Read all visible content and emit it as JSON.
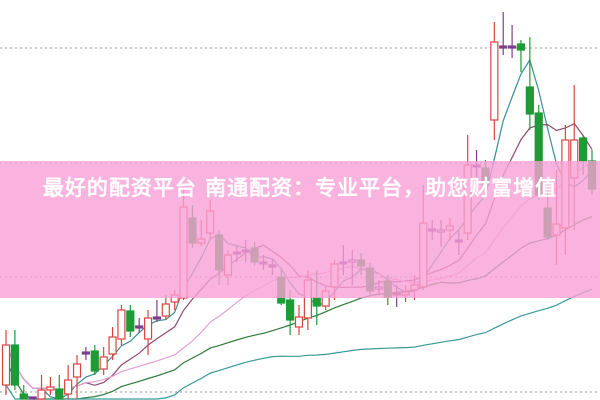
{
  "banner": {
    "title": "最好的配资平台 南通配资：专业平台，助您财富增值"
  },
  "chart_data": {
    "type": "candlestick",
    "title": "",
    "xlabel": "",
    "ylabel": "",
    "ylim": [
      0,
      40
    ],
    "grid": "dotted horizontal",
    "legend": "none",
    "colors": {
      "up": "#d9443f",
      "down": "#1f9a35",
      "doji": "#7b3f8a",
      "ma5": "#3b8d95",
      "ma10": "#8c4a70",
      "ma20": "#e3a1d6",
      "ma30": "#2e7a3a",
      "ma60": "#3a9a9a"
    },
    "moving_averages": [
      5,
      10,
      20,
      30,
      60
    ],
    "ohlc_order": [
      "open",
      "close",
      "high",
      "low"
    ],
    "candles": [
      [
        1.5,
        5.5,
        7.0,
        0.5
      ],
      [
        5.5,
        1.5,
        7.0,
        1.0
      ],
      [
        0.6,
        -0.8,
        1.5,
        -1.5
      ],
      [
        -1.2,
        -1.4,
        -0.5,
        -1.8
      ],
      [
        -0.8,
        1.0,
        2.5,
        -3.0
      ],
      [
        1.0,
        1.3,
        2.3,
        0.5
      ],
      [
        1.1,
        0.0,
        2.5,
        -0.5
      ],
      [
        0.6,
        2.0,
        3.5,
        -1.0
      ],
      [
        2.3,
        3.6,
        4.5,
        -0.8
      ],
      [
        4.8,
        4.6,
        5.3,
        4.0
      ],
      [
        4.9,
        2.9,
        5.5,
        2.5
      ],
      [
        3.1,
        4.3,
        5.3,
        2.5
      ],
      [
        4.6,
        6.3,
        7.3,
        4.0
      ],
      [
        6.1,
        9.0,
        9.5,
        5.5
      ],
      [
        8.9,
        6.9,
        9.5,
        6.3
      ],
      [
        7.4,
        7.2,
        8.2,
        6.7
      ],
      [
        6.1,
        8.2,
        9.0,
        4.5
      ],
      [
        8.3,
        8.3,
        10.0,
        7.8
      ],
      [
        8.4,
        9.6,
        10.5,
        8.0
      ],
      [
        9.8,
        10.5,
        11.0,
        9.0
      ],
      [
        10.2,
        19.3,
        21.0,
        10.0
      ],
      [
        18.2,
        15.7,
        19.5,
        15.2
      ],
      [
        15.7,
        16.1,
        18.0,
        15.4
      ],
      [
        16.7,
        18.9,
        20.0,
        16.0
      ],
      [
        16.5,
        13.0,
        17.0,
        11.5
      ],
      [
        12.5,
        14.5,
        15.0,
        11.5
      ],
      [
        14.8,
        14.6,
        15.5,
        13.8
      ],
      [
        15.0,
        15.0,
        16.0,
        13.8
      ],
      [
        15.2,
        13.8,
        15.8,
        13.4
      ],
      [
        13.8,
        13.8,
        14.5,
        13.0
      ],
      [
        13.5,
        13.3,
        14.2,
        12.5
      ],
      [
        12.3,
        9.7,
        13.0,
        9.5
      ],
      [
        10.0,
        8.0,
        11.0,
        6.5
      ],
      [
        7.3,
        8.3,
        9.5,
        6.5
      ],
      [
        8.2,
        12.0,
        13.0,
        7.0
      ],
      [
        10.2,
        9.4,
        13.0,
        7.5
      ],
      [
        9.4,
        10.9,
        11.3,
        9.0
      ],
      [
        11.3,
        13.6,
        14.0,
        10.0
      ],
      [
        13.8,
        13.6,
        15.5,
        12.5
      ],
      [
        13.8,
        14.0,
        15.0,
        11.5
      ],
      [
        14.0,
        13.4,
        14.7,
        12.5
      ],
      [
        13.2,
        10.9,
        13.7,
        10.5
      ],
      [
        11.1,
        11.3,
        12.0,
        10.5
      ],
      [
        11.9,
        10.3,
        12.5,
        9.5
      ],
      [
        10.7,
        10.5,
        11.5,
        9.3
      ],
      [
        10.5,
        10.8,
        11.5,
        9.8
      ],
      [
        11.0,
        11.5,
        12.5,
        10.0
      ],
      [
        11.3,
        17.7,
        21.5,
        11.0
      ],
      [
        17.1,
        17.1,
        18.0,
        16.0
      ],
      [
        16.9,
        17.0,
        18.0,
        15.3
      ],
      [
        17.0,
        17.4,
        18.2,
        16.0
      ],
      [
        16.0,
        16.0,
        17.0,
        14.5
      ],
      [
        16.7,
        23.5,
        26.5,
        16.0
      ],
      [
        23.5,
        23.5,
        25.0,
        22.0
      ],
      [
        23.2,
        21.6,
        24.0,
        21.0
      ],
      [
        28.0,
        35.8,
        37.8,
        26.0
      ],
      [
        35.4,
        35.2,
        38.8,
        34.5
      ],
      [
        35.4,
        35.4,
        37.5,
        34.2
      ],
      [
        35.6,
        35.0,
        36.0,
        32.8
      ],
      [
        31.3,
        28.6,
        36.3,
        27.0
      ],
      [
        28.7,
        20.5,
        29.5,
        20.0
      ],
      [
        19.2,
        16.3,
        21.0,
        16.0
      ],
      [
        16.5,
        17.6,
        23.0,
        13.5
      ],
      [
        17.2,
        26.0,
        27.5,
        14.5
      ],
      [
        22.2,
        26.0,
        31.5,
        17.0
      ],
      [
        26.2,
        23.9,
        26.5,
        22.5
      ],
      [
        23.9,
        21.1,
        25.0,
        20.5
      ]
    ]
  }
}
